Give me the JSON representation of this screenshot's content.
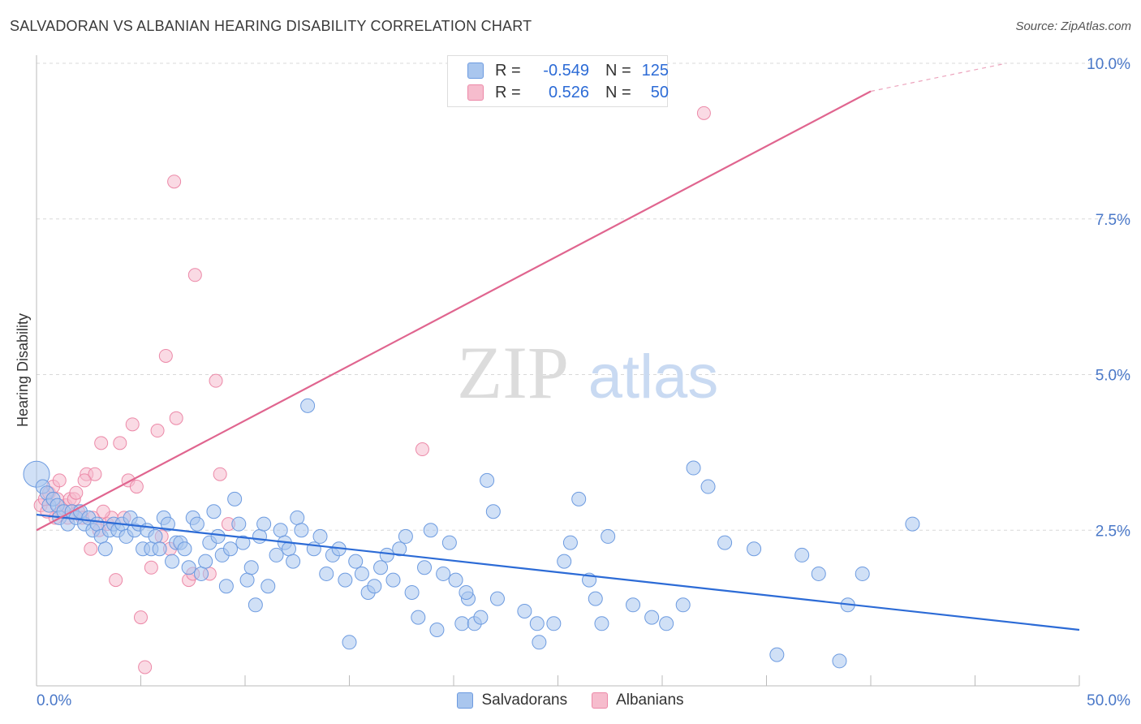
{
  "header": {
    "title": "SALVADORAN VS ALBANIAN HEARING DISABILITY CORRELATION CHART",
    "source": "Source: ZipAtlas.com"
  },
  "watermark": {
    "part1": "ZIP",
    "part2": "atlas"
  },
  "legend": {
    "rows": [
      {
        "r_label": "R =",
        "r_value": "-0.549",
        "n_label": "N =",
        "n_value": "125"
      },
      {
        "r_label": "R =",
        "r_value": "0.526",
        "n_label": "N =",
        "n_value": "50"
      }
    ]
  },
  "bottom_legend": {
    "salvadorans": "Salvadorans",
    "albanians": "Albanians"
  },
  "colors": {
    "blue_fill": "#a9c6ee",
    "blue_stroke": "#6d9be0",
    "blue_line": "#2c6bd6",
    "pink_fill": "#f6bccd",
    "pink_stroke": "#ec89a8",
    "pink_line": "#e0658f",
    "axis_text": "#4a78c8"
  },
  "chart_data": {
    "type": "scatter",
    "title": "SALVADORAN VS ALBANIAN HEARING DISABILITY CORRELATION CHART",
    "xlabel": "",
    "ylabel": "Hearing Disability",
    "xlim": [
      0,
      50
    ],
    "ylim": [
      0,
      10
    ],
    "x_tick_labels": [
      "0.0%",
      "50.0%"
    ],
    "y_ticks": [
      {
        "value": 2.5,
        "label": "2.5%"
      },
      {
        "value": 5.0,
        "label": "5.0%"
      },
      {
        "value": 7.5,
        "label": "7.5%"
      },
      {
        "value": 10.0,
        "label": "10.0%"
      }
    ],
    "series": [
      {
        "name": "Salvadorans",
        "color": "#6d9be0",
        "trend": {
          "x0": 0,
          "y0": 2.75,
          "x1": 50,
          "y1": 0.9
        },
        "points": [
          [
            0.0,
            3.4
          ],
          [
            0.3,
            3.2
          ],
          [
            0.5,
            3.1
          ],
          [
            0.6,
            2.9
          ],
          [
            0.8,
            3.0
          ],
          [
            1.0,
            2.9
          ],
          [
            1.1,
            2.7
          ],
          [
            1.3,
            2.8
          ],
          [
            1.5,
            2.6
          ],
          [
            1.7,
            2.8
          ],
          [
            1.9,
            2.7
          ],
          [
            2.1,
            2.8
          ],
          [
            2.3,
            2.6
          ],
          [
            2.5,
            2.7
          ],
          [
            2.7,
            2.5
          ],
          [
            2.9,
            2.6
          ],
          [
            3.1,
            2.4
          ],
          [
            3.3,
            2.2
          ],
          [
            3.5,
            2.5
          ],
          [
            3.7,
            2.6
          ],
          [
            3.9,
            2.5
          ],
          [
            4.1,
            2.6
          ],
          [
            4.3,
            2.4
          ],
          [
            4.5,
            2.7
          ],
          [
            4.7,
            2.5
          ],
          [
            4.9,
            2.6
          ],
          [
            5.1,
            2.2
          ],
          [
            5.3,
            2.5
          ],
          [
            5.5,
            2.2
          ],
          [
            5.7,
            2.4
          ],
          [
            5.9,
            2.2
          ],
          [
            6.1,
            2.7
          ],
          [
            6.3,
            2.6
          ],
          [
            6.5,
            2.0
          ],
          [
            6.7,
            2.3
          ],
          [
            6.9,
            2.3
          ],
          [
            7.1,
            2.2
          ],
          [
            7.3,
            1.9
          ],
          [
            7.5,
            2.7
          ],
          [
            7.7,
            2.6
          ],
          [
            7.9,
            1.8
          ],
          [
            8.1,
            2.0
          ],
          [
            8.3,
            2.3
          ],
          [
            8.5,
            2.8
          ],
          [
            8.7,
            2.4
          ],
          [
            8.9,
            2.1
          ],
          [
            9.1,
            1.6
          ],
          [
            9.3,
            2.2
          ],
          [
            9.5,
            3.0
          ],
          [
            9.7,
            2.6
          ],
          [
            9.9,
            2.3
          ],
          [
            10.1,
            1.7
          ],
          [
            10.3,
            1.9
          ],
          [
            10.5,
            1.3
          ],
          [
            10.7,
            2.4
          ],
          [
            10.9,
            2.6
          ],
          [
            11.1,
            1.6
          ],
          [
            11.5,
            2.1
          ],
          [
            11.7,
            2.5
          ],
          [
            11.9,
            2.3
          ],
          [
            12.1,
            2.2
          ],
          [
            12.3,
            2.0
          ],
          [
            12.5,
            2.7
          ],
          [
            12.7,
            2.5
          ],
          [
            13.0,
            4.5
          ],
          [
            13.3,
            2.2
          ],
          [
            13.6,
            2.4
          ],
          [
            13.9,
            1.8
          ],
          [
            14.2,
            2.1
          ],
          [
            14.5,
            2.2
          ],
          [
            14.8,
            1.7
          ],
          [
            15.0,
            0.7
          ],
          [
            15.3,
            2.0
          ],
          [
            15.6,
            1.8
          ],
          [
            15.9,
            1.5
          ],
          [
            16.2,
            1.6
          ],
          [
            16.5,
            1.9
          ],
          [
            16.8,
            2.1
          ],
          [
            17.1,
            1.7
          ],
          [
            17.4,
            2.2
          ],
          [
            17.7,
            2.4
          ],
          [
            18.0,
            1.5
          ],
          [
            18.3,
            1.1
          ],
          [
            18.6,
            1.9
          ],
          [
            18.9,
            2.5
          ],
          [
            19.2,
            0.9
          ],
          [
            19.5,
            1.8
          ],
          [
            19.8,
            2.3
          ],
          [
            20.1,
            1.7
          ],
          [
            20.4,
            1.0
          ],
          [
            20.7,
            1.4
          ],
          [
            21.0,
            1.0
          ],
          [
            21.3,
            1.1
          ],
          [
            21.6,
            3.3
          ],
          [
            21.9,
            2.8
          ],
          [
            24.8,
            1.0
          ],
          [
            25.3,
            2.0
          ],
          [
            25.6,
            2.3
          ],
          [
            26.0,
            3.0
          ],
          [
            26.5,
            1.7
          ],
          [
            26.8,
            1.4
          ],
          [
            27.1,
            1.0
          ],
          [
            27.4,
            2.4
          ],
          [
            28.6,
            1.3
          ],
          [
            29.5,
            1.1
          ],
          [
            30.2,
            1.0
          ],
          [
            31.0,
            1.3
          ],
          [
            31.5,
            3.5
          ],
          [
            32.2,
            3.2
          ],
          [
            33.0,
            2.3
          ],
          [
            34.4,
            2.2
          ],
          [
            35.5,
            0.5
          ],
          [
            36.7,
            2.1
          ],
          [
            37.5,
            1.8
          ],
          [
            38.5,
            0.4
          ],
          [
            38.9,
            1.3
          ],
          [
            39.6,
            1.8
          ],
          [
            42.0,
            2.6
          ],
          [
            24.0,
            1.0
          ],
          [
            24.1,
            0.7
          ],
          [
            22.1,
            1.4
          ],
          [
            23.4,
            1.2
          ],
          [
            20.6,
            1.5
          ]
        ]
      },
      {
        "name": "Albanians",
        "color": "#ec89a8",
        "trend": {
          "x0": 0,
          "y0": 2.5,
          "x1": 40,
          "y1": 9.55,
          "dash_to_x": 46.5,
          "dash_to_y": 10.0
        },
        "points": [
          [
            0.2,
            2.9
          ],
          [
            0.4,
            3.0
          ],
          [
            0.6,
            3.1
          ],
          [
            0.8,
            3.2
          ],
          [
            1.0,
            3.0
          ],
          [
            1.2,
            2.8
          ],
          [
            1.4,
            2.9
          ],
          [
            1.6,
            3.0
          ],
          [
            1.8,
            3.0
          ],
          [
            2.0,
            2.8
          ],
          [
            2.2,
            2.7
          ],
          [
            2.4,
            3.4
          ],
          [
            2.6,
            2.2
          ],
          [
            2.8,
            3.4
          ],
          [
            3.1,
            3.9
          ],
          [
            3.4,
            2.6
          ],
          [
            3.6,
            2.7
          ],
          [
            3.8,
            1.7
          ],
          [
            4.0,
            3.9
          ],
          [
            4.2,
            2.7
          ],
          [
            4.4,
            3.3
          ],
          [
            4.6,
            4.2
          ],
          [
            4.8,
            3.2
          ],
          [
            5.0,
            1.1
          ],
          [
            5.2,
            0.3
          ],
          [
            5.5,
            1.9
          ],
          [
            5.8,
            4.1
          ],
          [
            6.0,
            2.4
          ],
          [
            6.2,
            5.3
          ],
          [
            6.4,
            2.2
          ],
          [
            6.6,
            8.1
          ],
          [
            6.7,
            4.3
          ],
          [
            7.3,
            1.7
          ],
          [
            7.5,
            1.8
          ],
          [
            7.6,
            6.6
          ],
          [
            8.3,
            1.8
          ],
          [
            8.6,
            4.9
          ],
          [
            8.8,
            3.4
          ],
          [
            9.2,
            2.6
          ],
          [
            18.5,
            3.8
          ],
          [
            32.0,
            9.2
          ],
          [
            1.5,
            2.7
          ],
          [
            2.3,
            3.3
          ],
          [
            3.0,
            2.5
          ],
          [
            3.2,
            2.8
          ],
          [
            0.9,
            2.7
          ],
          [
            1.9,
            3.1
          ],
          [
            2.7,
            2.7
          ],
          [
            1.1,
            3.3
          ],
          [
            0.5,
            2.8
          ]
        ]
      }
    ]
  }
}
